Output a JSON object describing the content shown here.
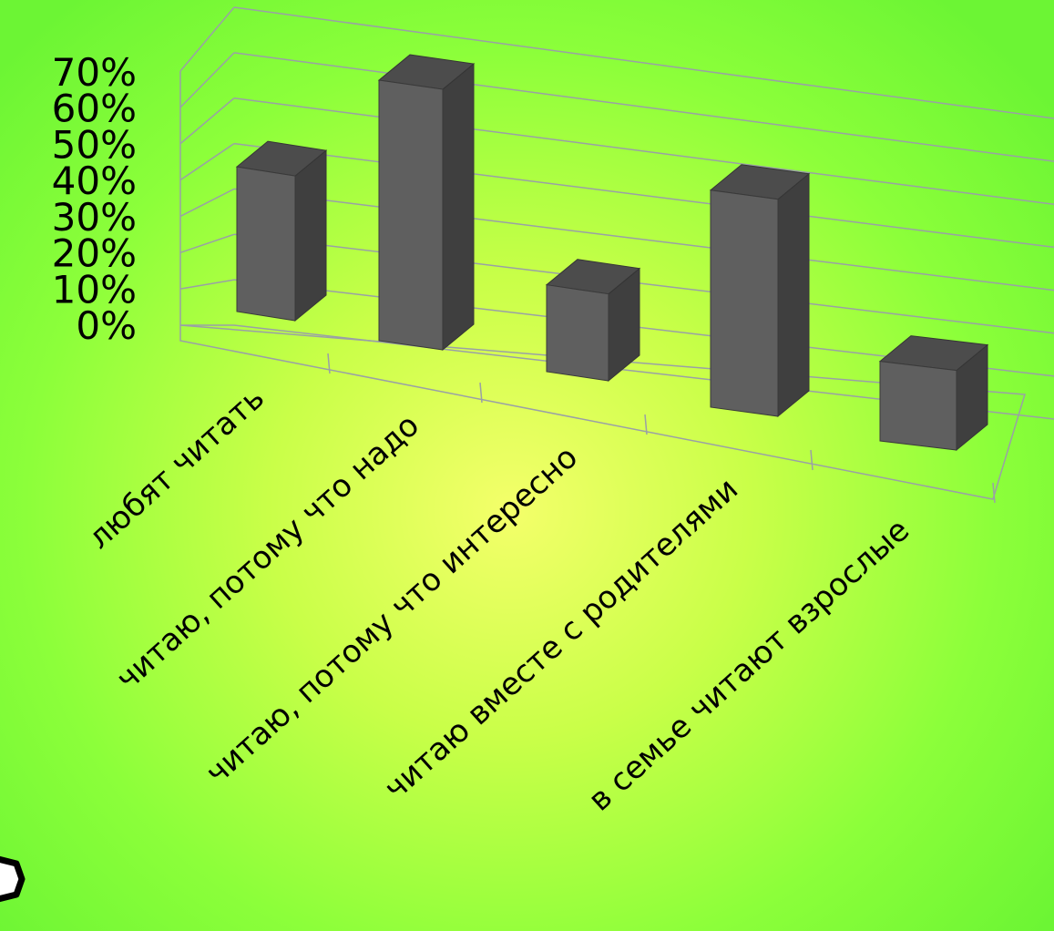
{
  "chart_data": {
    "type": "bar",
    "categories": [
      "любят читать",
      "читаю, потому что надо",
      "читаю, потому что интересно",
      "читаю вместе с родителями",
      "в семье читают взрослые"
    ],
    "values": [
      40,
      72,
      24,
      60,
      22
    ],
    "ylim": [
      0,
      70
    ],
    "y_ticks": [
      "0%",
      "10%",
      "20%",
      "30%",
      "40%",
      "50%",
      "60%",
      "70%"
    ],
    "grid": true,
    "bar_color": "#5f5f5f",
    "background_colors": [
      "#f4ff6a",
      "#6cf534"
    ],
    "style": "3d-column"
  }
}
